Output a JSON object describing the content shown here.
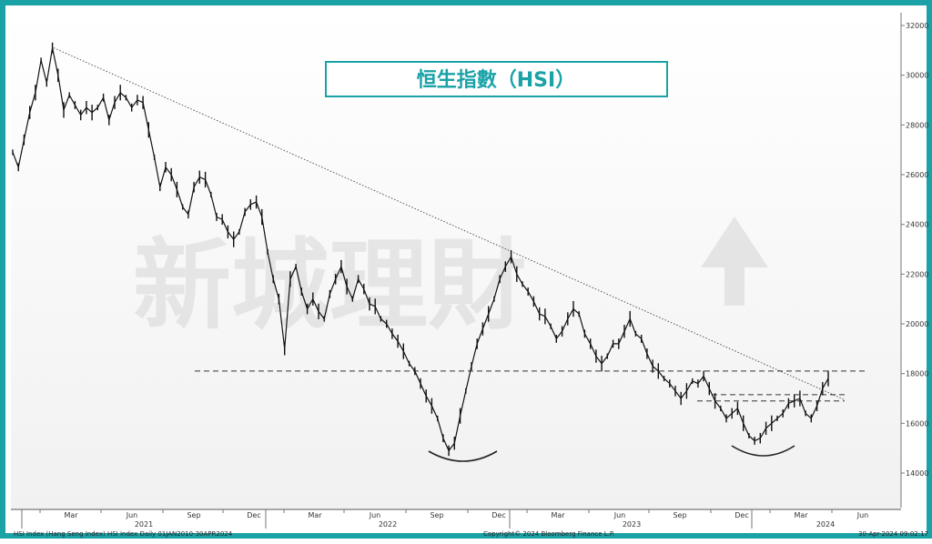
{
  "chart_data": {
    "type": "line",
    "title": "恒生指數（HSI）",
    "watermark": "新城理財",
    "y_ticks": [
      14000,
      16000,
      18000,
      20000,
      22000,
      24000,
      26000,
      28000,
      30000,
      32000
    ],
    "ylim": [
      13000,
      32500
    ],
    "x_month_labels": [
      "Mar",
      "Jun",
      "Sep",
      "Dec",
      "Mar",
      "Jun",
      "Sep",
      "Dec",
      "Mar",
      "Jun",
      "Sep",
      "Dec",
      "Mar",
      "Jun"
    ],
    "x_year_labels": [
      "2021",
      "2022",
      "2023",
      "2024"
    ],
    "series": [
      {
        "values": [
          26900,
          26300,
          27400,
          28500,
          29300,
          30600,
          29700,
          31100,
          30000,
          28600,
          29200,
          28800,
          28400,
          28700,
          28500,
          28700,
          29100,
          28200,
          28900,
          29300,
          29100,
          28700,
          29000,
          28900,
          27800,
          26700,
          25500,
          26300,
          26000,
          25400,
          24700,
          24400,
          25500,
          25900,
          25800,
          25200,
          24300,
          24200,
          23700,
          23400,
          23700,
          24500,
          24800,
          24900,
          24300,
          22900,
          21800,
          21000,
          19000,
          21800,
          22300,
          21300,
          20600,
          21000,
          20500,
          20200,
          21200,
          21800,
          22300,
          21500,
          21000,
          21800,
          21400,
          20800,
          20700,
          20200,
          20000,
          19600,
          19300,
          18900,
          18400,
          18100,
          17600,
          17100,
          16700,
          16200,
          15400,
          14900,
          15200,
          16300,
          17300,
          18300,
          19200,
          19800,
          20400,
          21000,
          21800,
          22300,
          22700,
          22000,
          21600,
          21300,
          20900,
          20400,
          20300,
          19900,
          19400,
          19700,
          20200,
          20600,
          20400,
          19600,
          19200,
          18700,
          18400,
          18700,
          19200,
          19200,
          19700,
          20200,
          19600,
          19400,
          18800,
          18300,
          18100,
          17800,
          17600,
          17300,
          17000,
          17300,
          17700,
          17600,
          17900,
          17400,
          16900,
          16600,
          16200,
          16400,
          16600,
          16000,
          15500,
          15300,
          15400,
          15800,
          16000,
          16200,
          16400,
          16800,
          16900,
          17000,
          16400,
          16200,
          16700,
          17400,
          17800
        ]
      }
    ],
    "annotations": {
      "trendline": {
        "from": [
          0,
          31100
        ],
        "to": [
          153,
          16800
        ]
      },
      "resistance_lines": [
        18100,
        17150,
        16900
      ],
      "arcs": [
        "2022 Oct bottom",
        "2024 Jan bottom"
      ]
    }
  },
  "footer": {
    "left": "HSI Index (Hang Seng Index) HSI Index  Daily 01JAN2010-30APR2024",
    "center": "Copyright© 2024 Bloomberg Finance L.P.",
    "right": "30-Apr-2024 09:02:17"
  }
}
